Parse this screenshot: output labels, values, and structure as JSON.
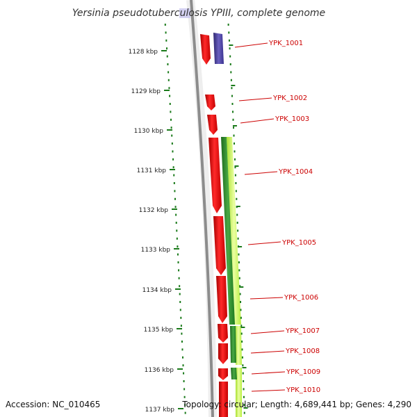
{
  "title": "Yersinia pseudotuberculosis YPIII, complete genome",
  "footer": {
    "accession": "Accession: NC_010465",
    "topology": "Topology: circular; Length: 4,689,441 bp; Genes: 4,290"
  },
  "tick_labels": [
    "1128 kbp",
    "1129 kbp",
    "1130 kbp",
    "1131 kbp",
    "1132 kbp",
    "1133 kbp",
    "1134 kbp",
    "1135 kbp",
    "1136 kbp",
    "1137 kbp"
  ],
  "gene_labels": [
    "YPK_1001",
    "YPK_1002",
    "YPK_1003",
    "YPK_1004",
    "YPK_1005",
    "YPK_1006",
    "YPK_1007",
    "YPK_1008",
    "YPK_1009",
    "YPK_1010"
  ],
  "colors": {
    "forward_cds": "#e81010",
    "reverse_cds": "#4a3f9a",
    "orf_dark": "#2e8b2e",
    "orf_light": "#c8f060",
    "backbone": "#8c8c8c",
    "tick_dots": "#1a7a1a",
    "label": "#cc0000"
  }
}
